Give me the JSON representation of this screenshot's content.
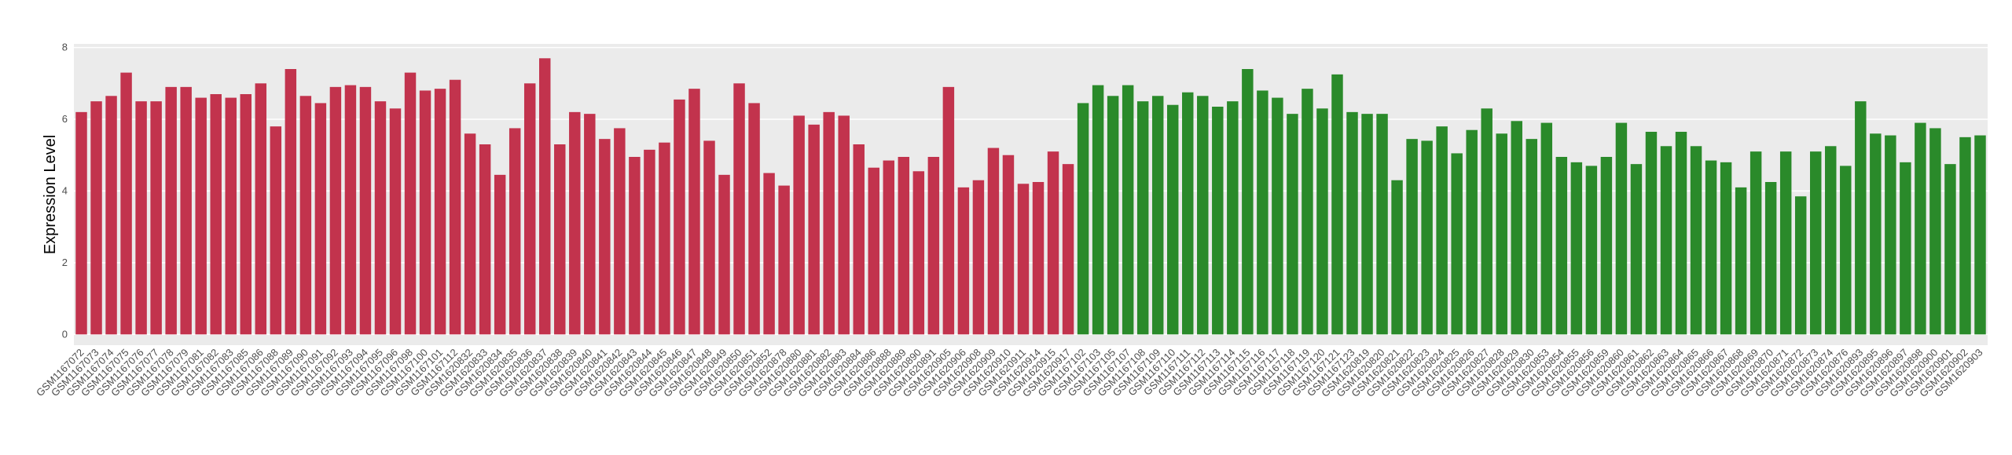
{
  "chart_data": {
    "type": "bar",
    "y_label": "Expression Level",
    "categories": [
      "GSM1167072",
      "GSM1167073",
      "GSM1167074",
      "GSM1167075",
      "GSM1167076",
      "GSM1167077",
      "GSM1167078",
      "GSM1167079",
      "GSM1167081",
      "GSM1167082",
      "GSM1167083",
      "GSM1167085",
      "GSM1167086",
      "GSM1167088",
      "GSM1167089",
      "GSM1167090",
      "GSM1167091",
      "GSM1167092",
      "GSM1167093",
      "GSM1167094",
      "GSM1167095",
      "GSM1167096",
      "GSM1167098",
      "GSM1167100",
      "GSM1167101",
      "GSM1167112",
      "GSM1620832",
      "GSM1620833",
      "GSM1620834",
      "GSM1620835",
      "GSM1620836",
      "GSM1620837",
      "GSM1620838",
      "GSM1620839",
      "GSM1620840",
      "GSM1620841",
      "GSM1620842",
      "GSM1620843",
      "GSM1620844",
      "GSM1620845",
      "GSM1620846",
      "GSM1620847",
      "GSM1620848",
      "GSM1620849",
      "GSM1620850",
      "GSM1620851",
      "GSM1620852",
      "GSM1620878",
      "GSM1620880",
      "GSM1620881",
      "GSM1620882",
      "GSM1620883",
      "GSM1620884",
      "GSM1620886",
      "GSM1620888",
      "GSM1620889",
      "GSM1620890",
      "GSM1620891",
      "GSM1620905",
      "GSM1620906",
      "GSM1620908",
      "GSM1620909",
      "GSM1620910",
      "GSM1620911",
      "GSM1620914",
      "GSM1620915",
      "GSM1620917",
      "GSM1167102",
      "GSM1167103",
      "GSM1167105",
      "GSM1167107",
      "GSM1167108",
      "GSM1167109",
      "GSM1167110",
      "GSM1167111",
      "GSM1167112",
      "GSM1167113",
      "GSM1167114",
      "GSM1167115",
      "GSM1167116",
      "GSM1167117",
      "GSM1167118",
      "GSM1167119",
      "GSM1167120",
      "GSM1167121",
      "GSM1167123",
      "GSM1620819",
      "GSM1620820",
      "GSM1620821",
      "GSM1620822",
      "GSM1620823",
      "GSM1620824",
      "GSM1620825",
      "GSM1620826",
      "GSM1620827",
      "GSM1620828",
      "GSM1620829",
      "GSM1620830",
      "GSM1620853",
      "GSM1620854",
      "GSM1620855",
      "GSM1620856",
      "GSM1620859",
      "GSM1620860",
      "GSM1620861",
      "GSM1620862",
      "GSM1620863",
      "GSM1620864",
      "GSM1620865",
      "GSM1620866",
      "GSM1620867",
      "GSM1620868",
      "GSM1620869",
      "GSM1620870",
      "GSM1620871",
      "GSM1620872",
      "GSM1620873",
      "GSM1620874",
      "GSM1620876",
      "GSM1620893",
      "GSM1620895",
      "GSM1620896",
      "GSM1620897",
      "GSM1620898",
      "GSM1620900",
      "GSM1620901",
      "GSM1620902",
      "GSM1620903"
    ],
    "values": [
      6.2,
      6.5,
      6.65,
      7.3,
      6.5,
      6.5,
      6.9,
      6.9,
      6.6,
      6.7,
      6.6,
      6.7,
      7.0,
      5.8,
      7.4,
      6.65,
      6.45,
      6.9,
      6.95,
      6.9,
      6.5,
      6.3,
      7.3,
      6.8,
      6.85,
      7.1,
      5.6,
      5.3,
      4.45,
      5.75,
      7.0,
      7.7,
      5.3,
      6.2,
      6.15,
      5.45,
      5.75,
      4.95,
      5.15,
      5.35,
      6.55,
      6.85,
      5.4,
      4.45,
      7.0,
      6.45,
      4.5,
      4.15,
      6.1,
      5.85,
      6.2,
      6.1,
      5.3,
      4.65,
      4.85,
      4.95,
      4.55,
      4.95,
      6.9,
      4.1,
      4.3,
      5.2,
      5.0,
      4.2,
      4.25,
      5.1,
      4.75,
      6.45,
      6.95,
      6.65,
      6.95,
      6.5,
      6.65,
      6.4,
      6.75,
      6.65,
      6.35,
      6.5,
      7.4,
      6.8,
      6.6,
      6.15,
      6.85,
      6.3,
      7.25,
      6.2,
      6.15,
      6.15,
      4.3,
      5.45,
      5.4,
      5.8,
      5.05,
      5.7,
      6.3,
      5.6,
      5.95,
      5.45,
      5.9,
      4.95,
      4.8,
      4.7,
      4.95,
      5.9,
      4.75,
      5.65,
      5.25,
      5.65,
      5.25,
      4.85,
      4.8,
      4.1,
      5.1,
      4.25,
      5.1,
      3.85,
      5.1,
      5.25,
      4.7,
      6.5,
      5.6,
      5.55,
      4.8,
      5.9,
      5.75,
      4.75,
      5.5,
      5.55
    ],
    "group_sizes": [
      67,
      61
    ],
    "group_colors": [
      "#c2334d",
      "#2a8a2a"
    ],
    "ylim": [
      -0.3,
      8.1
    ],
    "yticks": [
      0,
      2,
      4,
      6,
      8
    ],
    "grid": true
  }
}
